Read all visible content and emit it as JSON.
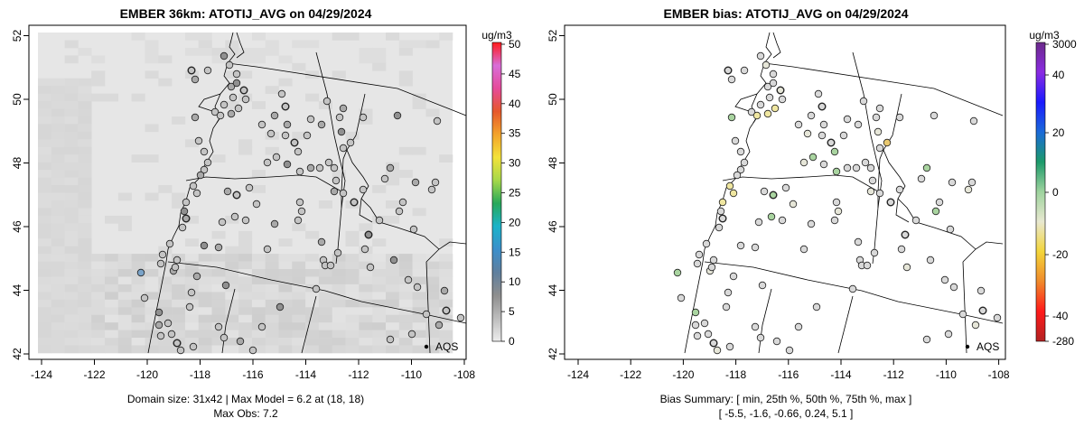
{
  "left": {
    "title": "EMBER 36km: ATOTIJ_AVG on 04/29/2024",
    "x_ticks": [
      "-124",
      "-122",
      "-120",
      "-118",
      "-116",
      "-114",
      "-112",
      "-110",
      "-108"
    ],
    "y_ticks": [
      "42",
      "44",
      "46",
      "48",
      "50",
      "52"
    ],
    "colorbar_unit": "ug/m3",
    "colorbar_ticks": [
      "0",
      "5",
      "10",
      "15",
      "20",
      "25",
      "30",
      "35",
      "40",
      "45",
      "50"
    ],
    "colorbar_colors": [
      "#ededed",
      "#bdbdbd",
      "#8e8e8e",
      "#5f7f9e",
      "#3b8fcb",
      "#1bb3c9",
      "#28a85a",
      "#a6d84a",
      "#f3e23a",
      "#f3a32b",
      "#e6582b",
      "#e64a9a",
      "#d86ed8",
      "#ff1a1a"
    ],
    "legend_label": "AQS",
    "caption_line1": "Domain size: 31x42 | Max Model = 6.2 at (18, 18)",
    "caption_line2": "Max Obs: 7.2"
  },
  "right": {
    "title": "EMBER bias: ATOTIJ_AVG on 04/29/2024",
    "x_ticks": [
      "-124",
      "-122",
      "-120",
      "-118",
      "-116",
      "-114",
      "-112",
      "-110",
      "-108"
    ],
    "y_ticks": [
      "42",
      "44",
      "46",
      "48",
      "50",
      "52"
    ],
    "colorbar_unit": "ug/m3",
    "colorbar_ticks": [
      "3000",
      "40",
      "20",
      "0",
      "-20",
      "-40",
      "-280"
    ],
    "colorbar_colors": [
      "#b22222",
      "#ff1a1a",
      "#f08a2b",
      "#f3d53a",
      "#e8e8d0",
      "#9ed39e",
      "#1c9a6a",
      "#1a6ad8",
      "#1a1aff",
      "#8a2be2",
      "#6b2a8a"
    ],
    "legend_label": "AQS",
    "caption_line1": "Bias Summary: [ min, 25th %, 50th %, 75th %, max ]",
    "caption_line2": "[ -5.5,   -1.6,   -0.66,   0.24,   5.1 ]"
  },
  "chart_data": [
    {
      "type": "map",
      "title": "EMBER 36km: ATOTIJ_AVG on 04/29/2024",
      "variable": "ATOTIJ_AVG",
      "date": "04/29/2024",
      "units": "ug/m3",
      "xlim": [
        -124.3,
        -107.8
      ],
      "ylim": [
        41.9,
        52.2
      ],
      "colorbar_range": [
        0,
        50
      ],
      "domain_size": "31x42",
      "max_model": 6.2,
      "max_model_at": [
        18,
        18
      ],
      "max_obs": 7.2,
      "legend": "AQS"
    },
    {
      "type": "map",
      "title": "EMBER bias: ATOTIJ_AVG on 04/29/2024",
      "variable": "ATOTIJ_AVG bias",
      "date": "04/29/2024",
      "units": "ug/m3",
      "xlim": [
        -124.3,
        -107.8
      ],
      "ylim": [
        41.9,
        52.2
      ],
      "bias_summary": {
        "min": -5.5,
        "p25": -1.6,
        "p50": -0.66,
        "p75": 0.24,
        "max": 5.1
      },
      "legend": "AQS"
    }
  ]
}
